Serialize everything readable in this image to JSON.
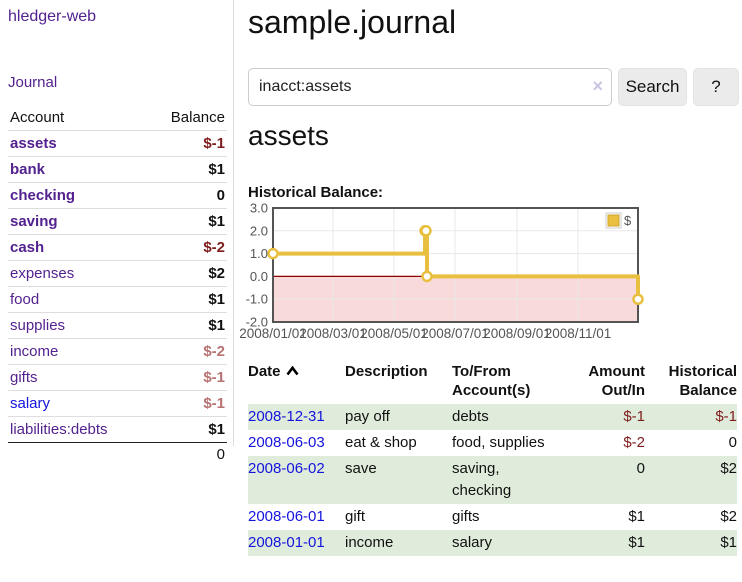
{
  "app": {
    "title": "hledger-web",
    "nav_journal": "Journal"
  },
  "sidebar": {
    "accounts_header": {
      "account": "Account",
      "balance": "Balance"
    },
    "accounts": [
      {
        "name": "assets",
        "level": 1,
        "emphasis": true,
        "balance": "$-1",
        "link_style": "purple"
      },
      {
        "name": "bank",
        "level": 2,
        "emphasis": true,
        "balance": "$1",
        "link_style": "purple"
      },
      {
        "name": "checking",
        "level": 3,
        "emphasis": true,
        "balance": "0",
        "link_style": "purple"
      },
      {
        "name": "saving",
        "level": 3,
        "emphasis": true,
        "balance": "$1",
        "link_style": "purple"
      },
      {
        "name": "cash",
        "level": 2,
        "emphasis": true,
        "balance": "$-2",
        "link_style": "purple"
      },
      {
        "name": "expenses",
        "level": 1,
        "emphasis": false,
        "balance": "$2",
        "link_style": "purple"
      },
      {
        "name": "food",
        "level": 2,
        "emphasis": false,
        "balance": "$1",
        "link_style": "purple"
      },
      {
        "name": "supplies",
        "level": 2,
        "emphasis": false,
        "balance": "$1",
        "link_style": "purple"
      },
      {
        "name": "income",
        "level": 1,
        "emphasis": false,
        "balance": "$-2",
        "link_style": "purple"
      },
      {
        "name": "gifts",
        "level": 2,
        "emphasis": false,
        "balance": "$-1",
        "link_style": "purple"
      },
      {
        "name": "salary",
        "level": 2,
        "emphasis": false,
        "balance": "$-1",
        "link_style": "blue"
      },
      {
        "name": "liabilities:debts",
        "level": 1,
        "emphasis": false,
        "balance": "$1",
        "link_style": "purple"
      }
    ],
    "total": "0"
  },
  "main": {
    "title": "sample.journal",
    "search": {
      "value": "inacct:assets",
      "clear_label": "×",
      "button_label": "Search",
      "help_label": "?"
    },
    "account_heading": "assets",
    "chart_label": "Historical Balance:"
  },
  "chart_data": {
    "type": "line",
    "title": "Historical Balance:",
    "step": true,
    "series": [
      {
        "name": "$",
        "color": "#e9bf40",
        "points": [
          {
            "date": "2008-01-01",
            "day": 0,
            "value": 1
          },
          {
            "date": "2008-06-01",
            "day": 152,
            "value": 2
          },
          {
            "date": "2008-06-02",
            "day": 153,
            "value": 2
          },
          {
            "date": "2008-06-03",
            "day": 154,
            "value": 0
          },
          {
            "date": "2008-12-31",
            "day": 365,
            "value": -1
          }
        ]
      }
    ],
    "x_ticks": [
      {
        "label": "2008/01/01",
        "day": 0
      },
      {
        "label": "2008/03/01",
        "day": 60
      },
      {
        "label": "2008/05/01",
        "day": 121
      },
      {
        "label": "2008/07/01",
        "day": 182
      },
      {
        "label": "2008/09/01",
        "day": 244
      },
      {
        "label": "2008/11/01",
        "day": 305
      }
    ],
    "y_ticks": [
      "3.0",
      "2.0",
      "1.0",
      "0.0",
      "-1.0",
      "-2.0"
    ],
    "ylim": [
      -2,
      3
    ],
    "xlim_days": [
      0,
      365
    ],
    "grid": true,
    "negative_region_color": "#f9dada",
    "zero_line_color": "#8b0000",
    "border_color": "#545454",
    "gridline_color": "#e8e8e8",
    "tick_color": "#545454",
    "legend": {
      "label": "$",
      "position": "top-right"
    }
  },
  "register": {
    "columns": [
      "Date",
      "Description",
      "To/From Account(s)",
      "Amount Out/In",
      "Historical Balance"
    ],
    "rows": [
      {
        "date": "2008-12-31",
        "description": "pay off",
        "accounts": "debts",
        "amount": "$-1",
        "balance": "$-1",
        "shaded": true
      },
      {
        "date": "2008-06-03",
        "description": "eat & shop",
        "accounts": "food, supplies",
        "amount": "$-2",
        "balance": "0",
        "shaded": false
      },
      {
        "date": "2008-06-02",
        "description": "save",
        "accounts": "saving, checking",
        "amount": "0",
        "balance": "$2",
        "shaded": true
      },
      {
        "date": "2008-06-01",
        "description": "gift",
        "accounts": "gifts",
        "amount": "$1",
        "balance": "$2",
        "shaded": false
      },
      {
        "date": "2008-01-01",
        "description": "income",
        "accounts": "salary",
        "amount": "$1",
        "balance": "$1",
        "shaded": true
      }
    ]
  }
}
